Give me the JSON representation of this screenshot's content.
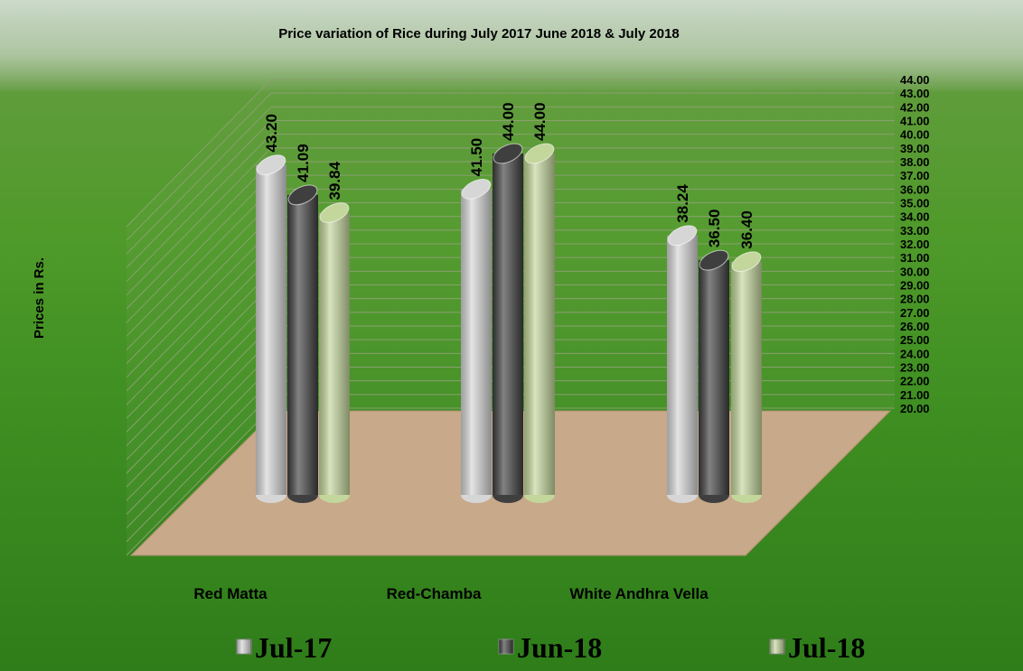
{
  "chart_data": {
    "type": "bar3d",
    "title": "Price variation of Rice during  July  2017  June  2018 &  July 2018",
    "y_label": "Prices in Rs.",
    "categories": [
      "Red Matta",
      "Red-Chamba",
      "White Andhra Vella"
    ],
    "series": [
      {
        "name": "Jul-17",
        "color": "#d6d6d6",
        "values": [
          43.2,
          41.5,
          38.24
        ],
        "value_labels": [
          "43.20",
          "41.50",
          "38.24"
        ]
      },
      {
        "name": "Jun-18",
        "color": "#3f3f3f",
        "values": [
          41.09,
          44,
          36.5
        ],
        "value_labels": [
          "41.09",
          "44.00",
          "36.50"
        ]
      },
      {
        "name": "Jul-18",
        "color": "#c3d69b",
        "values": [
          39.84,
          44,
          36.4
        ],
        "value_labels": [
          "39.84",
          "44.00",
          "36.40"
        ]
      }
    ],
    "ylim": [
      20,
      44
    ],
    "yticks": [
      {
        "value": 20,
        "label": "20.00"
      },
      {
        "value": 21,
        "label": "21.00"
      },
      {
        "value": 22,
        "label": "22.00"
      },
      {
        "value": 23,
        "label": "23.00"
      },
      {
        "value": 24,
        "label": "24.00"
      },
      {
        "value": 25,
        "label": "25.00"
      },
      {
        "value": 26,
        "label": "26.00"
      },
      {
        "value": 27,
        "label": "27.00"
      },
      {
        "value": 28,
        "label": "28.00"
      },
      {
        "value": 29,
        "label": "29.00"
      },
      {
        "value": 30,
        "label": "30.00"
      },
      {
        "value": 31,
        "label": "31.00"
      },
      {
        "value": 32,
        "label": "32.00"
      },
      {
        "value": 33,
        "label": "33.00"
      },
      {
        "value": 34,
        "label": "34.00"
      },
      {
        "value": 35,
        "label": "35.00"
      },
      {
        "value": 36,
        "label": "36.00"
      },
      {
        "value": 37,
        "label": "37.00"
      },
      {
        "value": 38,
        "label": "38.00"
      },
      {
        "value": 39,
        "label": "39.00"
      },
      {
        "value": 40,
        "label": "40.00"
      },
      {
        "value": 41,
        "label": "41.00"
      },
      {
        "value": 42,
        "label": "42.00"
      },
      {
        "value": 43,
        "label": "43.00"
      },
      {
        "value": 44,
        "label": "44.00"
      }
    ],
    "grid": true
  }
}
